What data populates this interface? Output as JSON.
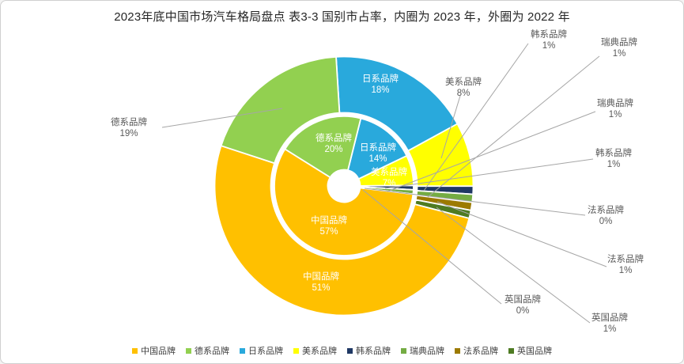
{
  "title": "2023年底中国市场汽车格局盘点 表3-3 国别市占率，内圈为 2023 年，外圈为 2022 年",
  "chart_data": {
    "type": "pie",
    "subtype": "nested_doughnut",
    "rings_note": "内圈为 2023 年，外圈为 2022 年",
    "categories": [
      "中国品牌",
      "德系品牌",
      "日系品牌",
      "美系品牌",
      "韩系品牌",
      "瑞典品牌",
      "法系品牌",
      "英国品牌"
    ],
    "colors": [
      "#FFC000",
      "#92D050",
      "#29A9DC",
      "#FFFF00",
      "#1F3864",
      "#74AC43",
      "#9C7A00",
      "#4E7B22"
    ],
    "series": [
      {
        "name": "2023年（内圈）",
        "values": [
          57,
          20,
          14,
          7,
          1,
          1,
          0,
          0
        ]
      },
      {
        "name": "2022年（外圈）",
        "values": [
          51,
          19,
          18,
          8,
          1,
          1,
          1,
          1
        ]
      }
    ],
    "legend_position": "bottom",
    "inside_labels": [
      {
        "ring": "inner",
        "label": "德系品牌",
        "pct": "20%"
      },
      {
        "ring": "inner",
        "label": "日系品牌",
        "pct": "14%"
      },
      {
        "ring": "inner",
        "label": "美系品牌",
        "pct": "7%"
      },
      {
        "ring": "inner",
        "label": "中国品牌",
        "pct": "57%"
      },
      {
        "ring": "outer",
        "label": "日系品牌",
        "pct": "18%"
      },
      {
        "ring": "outer",
        "label": "中国品牌",
        "pct": "51%"
      }
    ],
    "callouts": [
      {
        "label": "韩系品牌",
        "pct": "1%"
      },
      {
        "label": "瑞典品牌",
        "pct": "1%"
      },
      {
        "label": "瑞典品牌",
        "pct": "1%"
      },
      {
        "label": "韩系品牌",
        "pct": "1%"
      },
      {
        "label": "法系品牌",
        "pct": "0%"
      },
      {
        "label": "法系品牌",
        "pct": "1%"
      },
      {
        "label": "英国品牌",
        "pct": "0%"
      },
      {
        "label": "英国品牌",
        "pct": "1%"
      },
      {
        "label": "德系品牌",
        "pct": "19%"
      },
      {
        "label": "美系品牌",
        "pct": "8%"
      }
    ]
  },
  "legend": {
    "items": [
      "中国品牌",
      "德系品牌",
      "日系品牌",
      "美系品牌",
      "韩系品牌",
      "瑞典品牌",
      "法系品牌",
      "英国品牌"
    ]
  }
}
